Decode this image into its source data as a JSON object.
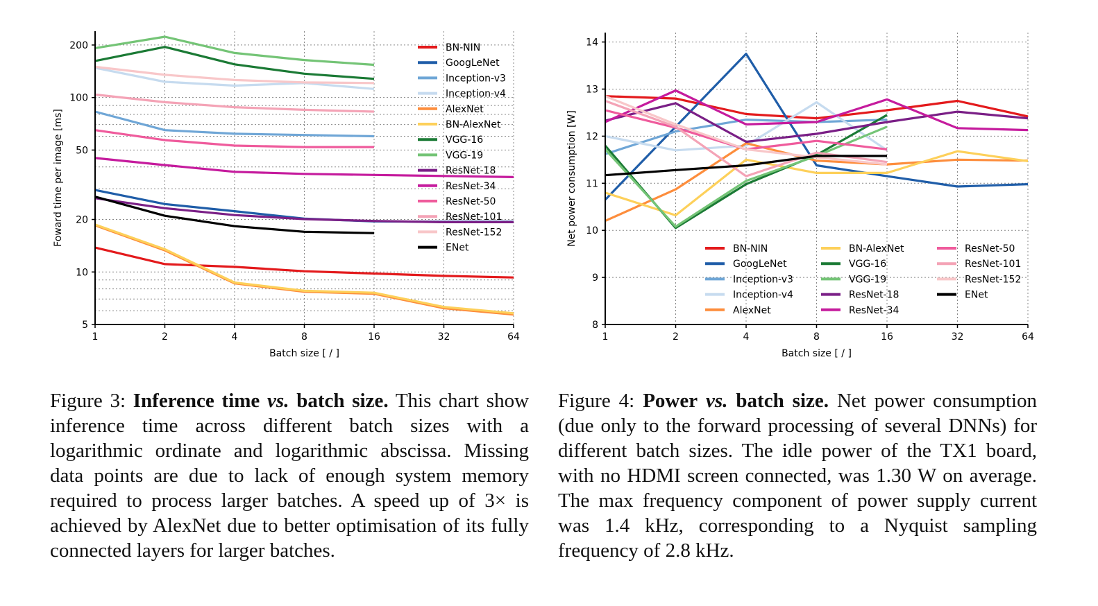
{
  "colors": {
    "BN-NIN": "#e31a1c",
    "GoogLeNet": "#1f5da8",
    "Inception-v3": "#6fa6d6",
    "Inception-v4": "#c6dbef",
    "AlexNet": "#fd8d3c",
    "BN-AlexNet": "#fdd05a",
    "VGG-16": "#1b7a35",
    "VGG-19": "#74c476",
    "ResNet-18": "#7a1f86",
    "ResNet-34": "#c51b9d",
    "ResNet-50": "#ef5b9c",
    "ResNet-101": "#f4a3b6",
    "ResNet-152": "#f8c7c9",
    "ENet": "#000000"
  },
  "chart_data": [
    {
      "type": "line",
      "xlabel": "Batch size [ / ]",
      "ylabel": "Foward time per image [ms]",
      "xscale": "log2",
      "yscale": "log",
      "x_ticks": [
        "1",
        "2",
        "4",
        "8",
        "16",
        "32",
        "64"
      ],
      "y_ticks": [
        "5",
        "10",
        "20",
        "50",
        "100",
        "200"
      ],
      "ylim": [
        5,
        240
      ],
      "grid": true,
      "legend_position": "top-right",
      "series": [
        {
          "name": "BN-NIN",
          "x": [
            1,
            2,
            4,
            8,
            16,
            32,
            64
          ],
          "values": [
            13.8,
            11.1,
            10.7,
            10.1,
            9.8,
            9.5,
            9.3
          ]
        },
        {
          "name": "GoogLeNet",
          "x": [
            1,
            2,
            4,
            8,
            16,
            32,
            64
          ],
          "values": [
            29.5,
            24.5,
            22.3,
            20.2,
            19.5,
            19.4,
            19.4
          ]
        },
        {
          "name": "Inception-v3",
          "x": [
            1,
            2,
            4,
            8,
            16
          ],
          "values": [
            83,
            65,
            62,
            61,
            60
          ]
        },
        {
          "name": "Inception-v4",
          "x": [
            1,
            2,
            4,
            8,
            16
          ],
          "values": [
            148,
            123,
            117,
            121,
            112
          ]
        },
        {
          "name": "AlexNet",
          "x": [
            1,
            2,
            4,
            8,
            16,
            32,
            64
          ],
          "values": [
            18.5,
            13.3,
            8.6,
            7.7,
            7.5,
            6.2,
            5.7
          ]
        },
        {
          "name": "BN-AlexNet",
          "x": [
            1,
            2,
            4,
            8,
            16,
            32,
            64
          ],
          "values": [
            18.7,
            13.5,
            8.7,
            7.8,
            7.6,
            6.3,
            5.8
          ]
        },
        {
          "name": "VGG-16",
          "x": [
            1,
            2,
            4,
            8,
            16
          ],
          "values": [
            162,
            195,
            155,
            137,
            128
          ]
        },
        {
          "name": "VGG-19",
          "x": [
            1,
            2,
            4,
            8,
            16
          ],
          "values": [
            192,
            223,
            180,
            164,
            154
          ]
        },
        {
          "name": "ResNet-18",
          "x": [
            1,
            2,
            4,
            8,
            16,
            32,
            64
          ],
          "values": [
            26.5,
            23.2,
            21.2,
            20.1,
            19.6,
            19.3,
            19.3
          ]
        },
        {
          "name": "ResNet-34",
          "x": [
            1,
            2,
            4,
            8,
            16,
            32,
            64
          ],
          "values": [
            45,
            41,
            37.5,
            36.5,
            36,
            35.5,
            35
          ]
        },
        {
          "name": "ResNet-50",
          "x": [
            1,
            2,
            4,
            8,
            16
          ],
          "values": [
            65,
            57,
            53,
            52,
            52
          ]
        },
        {
          "name": "ResNet-101",
          "x": [
            1,
            2,
            4,
            8,
            16
          ],
          "values": [
            104,
            94,
            88,
            85,
            83
          ]
        },
        {
          "name": "ResNet-152",
          "x": [
            1,
            2,
            4,
            8,
            16
          ],
          "values": [
            150,
            135,
            126,
            122,
            121
          ]
        },
        {
          "name": "ENet",
          "x": [
            1,
            2,
            4,
            8,
            16
          ],
          "values": [
            27,
            21,
            18.3,
            17,
            16.7
          ]
        }
      ]
    },
    {
      "type": "line",
      "xlabel": "Batch size [ / ]",
      "ylabel": "Net power consumption [W]",
      "xscale": "log2",
      "yscale": "linear",
      "x_ticks": [
        "1",
        "2",
        "4",
        "8",
        "16",
        "32",
        "64"
      ],
      "y_ticks": [
        "8",
        "9",
        "10",
        "11",
        "12",
        "13",
        "14"
      ],
      "ylim": [
        8,
        14.2
      ],
      "grid": true,
      "legend_position": "bottom (3 columns)",
      "series": [
        {
          "name": "BN-NIN",
          "x": [
            1,
            2,
            4,
            8,
            16,
            32,
            64
          ],
          "values": [
            12.85,
            12.8,
            12.47,
            12.38,
            12.55,
            12.75,
            12.42
          ]
        },
        {
          "name": "GoogLeNet",
          "x": [
            1,
            2,
            4,
            8,
            16,
            32,
            64
          ],
          "values": [
            10.65,
            12.2,
            13.75,
            11.38,
            11.15,
            10.93,
            10.98
          ]
        },
        {
          "name": "Inception-v3",
          "x": [
            1,
            2,
            4,
            8,
            16
          ],
          "values": [
            11.62,
            12.1,
            12.35,
            12.3,
            12.35
          ]
        },
        {
          "name": "Inception-v4",
          "x": [
            1,
            2,
            4,
            8,
            16
          ],
          "values": [
            12.0,
            11.7,
            11.8,
            12.72,
            11.7
          ]
        },
        {
          "name": "AlexNet",
          "x": [
            1,
            2,
            4,
            8,
            16,
            32,
            64
          ],
          "values": [
            10.2,
            10.87,
            11.85,
            11.48,
            11.4,
            11.5,
            11.48
          ]
        },
        {
          "name": "BN-AlexNet",
          "x": [
            1,
            2,
            4,
            8,
            16,
            32,
            64
          ],
          "values": [
            10.8,
            10.32,
            11.5,
            11.22,
            11.22,
            11.68,
            11.47
          ]
        },
        {
          "name": "VGG-16",
          "x": [
            1,
            2,
            4,
            8,
            16
          ],
          "values": [
            11.8,
            10.05,
            10.98,
            11.6,
            12.45
          ]
        },
        {
          "name": "VGG-19",
          "x": [
            1,
            2,
            4,
            8,
            16
          ],
          "values": [
            11.72,
            10.08,
            11.05,
            11.58,
            12.2
          ]
        },
        {
          "name": "ResNet-18",
          "x": [
            1,
            2,
            4,
            8,
            16,
            32,
            64
          ],
          "values": [
            12.33,
            12.7,
            11.88,
            12.05,
            12.3,
            12.52,
            12.38
          ]
        },
        {
          "name": "ResNet-34",
          "x": [
            1,
            2,
            4,
            8,
            16,
            32,
            64
          ],
          "values": [
            12.3,
            12.97,
            12.25,
            12.3,
            12.78,
            12.17,
            12.13
          ]
        },
        {
          "name": "ResNet-50",
          "x": [
            1,
            2,
            4,
            8,
            16
          ],
          "values": [
            12.55,
            12.18,
            11.72,
            11.9,
            11.72
          ]
        },
        {
          "name": "ResNet-101",
          "x": [
            1,
            2,
            4,
            8,
            16
          ],
          "values": [
            12.75,
            12.2,
            11.15,
            11.65,
            11.45
          ]
        },
        {
          "name": "ResNet-152",
          "x": [
            1,
            2,
            4,
            8,
            16
          ],
          "values": [
            12.85,
            12.25,
            11.72,
            11.55,
            11.4
          ]
        },
        {
          "name": "ENet",
          "x": [
            1,
            2,
            4,
            8,
            16
          ],
          "values": [
            11.17,
            11.28,
            11.38,
            11.58,
            11.58
          ]
        }
      ]
    }
  ],
  "captions": {
    "left": {
      "prefix": "Figure 3:",
      "bold_a": "Inference time",
      "bold_vs": "vs.",
      "bold_b": "batch size.",
      "body": "This chart show inference time across different batch sizes with a logarithmic ordinate and logarithmic abscissa. Missing data points are due to lack of enough system memory required to process larger batches. A speed up of 3× is achieved by AlexNet due to better optimisation of its fully connected layers for larger batches."
    },
    "right": {
      "prefix": "Figure 4:",
      "bold_a": "Power",
      "bold_vs": "vs.",
      "bold_b": "batch size.",
      "body": "Net power consumption (due only to the forward processing of several DNNs) for different batch sizes. The idle power of the TX1 board, with no HDMI screen connected, was 1.30 W on average. The max frequency component of power supply current was 1.4 kHz, corresponding to a Nyquist sampling frequency of 2.8 kHz."
    }
  }
}
